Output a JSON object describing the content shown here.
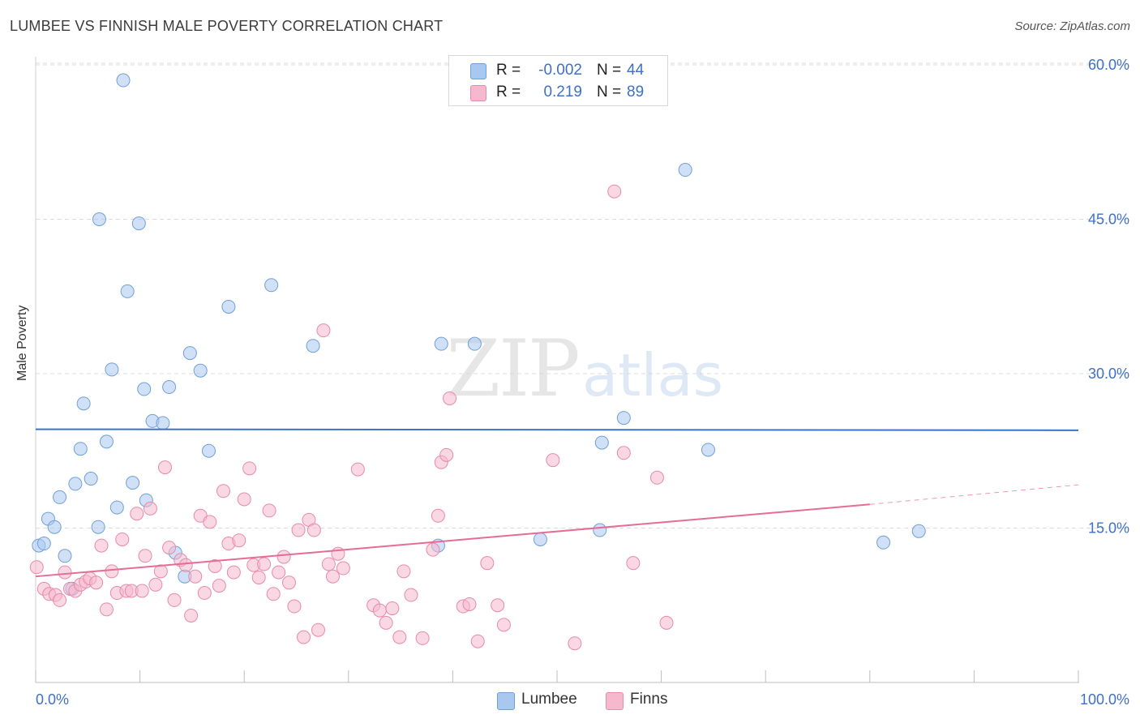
{
  "title": "LUMBEE VS FINNISH MALE POVERTY CORRELATION CHART",
  "source": "Source: ZipAtlas.com",
  "watermark": {
    "zip": "ZIP",
    "atlas": "atlas"
  },
  "stats": [
    {
      "r_label": "R =",
      "r_value": "-0.002",
      "n_label": "N =",
      "n_value": "44",
      "color": "#a9c8f0"
    },
    {
      "r_label": "R =",
      "r_value": "0.219",
      "n_label": "N =",
      "n_value": "89",
      "color": "#f6b8cc"
    }
  ],
  "legend": [
    {
      "label": "Lumbee",
      "color": "#a9c8f0"
    },
    {
      "label": "Finns",
      "color": "#f6b8cc"
    }
  ],
  "colors": {
    "lumbee_fill": "#a9c8f0",
    "lumbee_stroke": "#6f9fd8",
    "lumbee_line": "#3a74c9",
    "finns_fill": "#f6b8cc",
    "finns_stroke": "#e88aa8",
    "finns_line": "#e36d97",
    "tick_label": "#3e70c6",
    "grid": "#dcdcdc"
  },
  "chart_data": {
    "type": "scatter",
    "title": "LUMBEE VS FINNISH MALE POVERTY CORRELATION CHART",
    "xlabel": "",
    "ylabel": "Male Poverty",
    "xlim": [
      0,
      100
    ],
    "ylim": [
      0,
      63
    ],
    "x_tick_labels": [
      {
        "value": 0,
        "label": "0.0%"
      },
      {
        "value": 100,
        "label": "100.0%"
      }
    ],
    "x_minor_ticks": [
      0,
      10,
      20,
      30,
      40,
      50,
      60,
      70,
      80,
      90,
      100
    ],
    "y_ticks": [
      {
        "value": 15,
        "label": "15.0%"
      },
      {
        "value": 30,
        "label": "30.0%"
      },
      {
        "value": 45,
        "label": "45.0%"
      },
      {
        "value": 60,
        "label": "60.0%"
      }
    ],
    "grid": "horizontal dashed",
    "legend_position": "bottom-center",
    "series": [
      {
        "name": "Lumbee",
        "points": [
          [
            0.3,
            13.3
          ],
          [
            0.8,
            13.5
          ],
          [
            1.2,
            15.9
          ],
          [
            1.8,
            15.1
          ],
          [
            2.3,
            18.0
          ],
          [
            2.8,
            12.3
          ],
          [
            3.5,
            9.1
          ],
          [
            3.8,
            19.3
          ],
          [
            4.3,
            22.7
          ],
          [
            4.6,
            27.1
          ],
          [
            5.3,
            19.8
          ],
          [
            6.0,
            15.1
          ],
          [
            6.1,
            45.0
          ],
          [
            6.8,
            23.4
          ],
          [
            7.3,
            30.4
          ],
          [
            7.8,
            17.0
          ],
          [
            8.4,
            58.5
          ],
          [
            8.8,
            38.0
          ],
          [
            9.3,
            19.4
          ],
          [
            9.9,
            44.6
          ],
          [
            10.4,
            28.5
          ],
          [
            10.6,
            17.7
          ],
          [
            11.2,
            25.4
          ],
          [
            12.2,
            25.2
          ],
          [
            12.8,
            28.7
          ],
          [
            13.4,
            12.6
          ],
          [
            14.3,
            10.3
          ],
          [
            14.8,
            32.0
          ],
          [
            15.8,
            30.3
          ],
          [
            16.6,
            22.5
          ],
          [
            18.5,
            36.5
          ],
          [
            22.6,
            38.6
          ],
          [
            26.6,
            32.7
          ],
          [
            38.6,
            13.3
          ],
          [
            38.9,
            32.9
          ],
          [
            42.1,
            32.9
          ],
          [
            48.4,
            13.9
          ],
          [
            54.1,
            14.8
          ],
          [
            54.3,
            23.3
          ],
          [
            56.4,
            25.7
          ],
          [
            62.3,
            49.8
          ],
          [
            64.5,
            22.6
          ],
          [
            81.3,
            13.6
          ],
          [
            84.7,
            14.7
          ]
        ],
        "trend": {
          "x": [
            0,
            100
          ],
          "y": [
            24.6,
            24.5
          ]
        }
      },
      {
        "name": "Finns",
        "points": [
          [
            0.1,
            11.2
          ],
          [
            0.8,
            9.1
          ],
          [
            1.3,
            8.6
          ],
          [
            1.9,
            8.5
          ],
          [
            2.3,
            8.0
          ],
          [
            2.8,
            10.7
          ],
          [
            3.3,
            9.1
          ],
          [
            3.8,
            8.9
          ],
          [
            4.3,
            9.5
          ],
          [
            4.8,
            9.8
          ],
          [
            5.2,
            10.1
          ],
          [
            5.8,
            9.7
          ],
          [
            6.3,
            13.3
          ],
          [
            6.8,
            7.1
          ],
          [
            7.3,
            10.8
          ],
          [
            7.8,
            8.7
          ],
          [
            8.3,
            13.9
          ],
          [
            8.7,
            8.9
          ],
          [
            9.2,
            8.9
          ],
          [
            9.7,
            16.4
          ],
          [
            10.2,
            8.9
          ],
          [
            10.5,
            12.3
          ],
          [
            11.0,
            16.9
          ],
          [
            11.5,
            9.5
          ],
          [
            12.0,
            10.8
          ],
          [
            12.4,
            20.9
          ],
          [
            12.8,
            13.1
          ],
          [
            13.3,
            8.0
          ],
          [
            13.9,
            11.9
          ],
          [
            14.4,
            11.4
          ],
          [
            14.9,
            6.5
          ],
          [
            15.3,
            10.3
          ],
          [
            15.8,
            16.2
          ],
          [
            16.2,
            8.7
          ],
          [
            16.7,
            15.6
          ],
          [
            17.2,
            11.3
          ],
          [
            17.6,
            9.4
          ],
          [
            18.0,
            18.6
          ],
          [
            18.5,
            13.5
          ],
          [
            19.0,
            10.7
          ],
          [
            19.5,
            13.8
          ],
          [
            20.0,
            17.8
          ],
          [
            20.5,
            20.8
          ],
          [
            20.9,
            11.4
          ],
          [
            21.4,
            10.2
          ],
          [
            21.9,
            11.5
          ],
          [
            22.4,
            16.7
          ],
          [
            22.8,
            8.6
          ],
          [
            23.3,
            10.7
          ],
          [
            23.8,
            12.2
          ],
          [
            24.3,
            9.7
          ],
          [
            24.8,
            7.4
          ],
          [
            25.2,
            14.8
          ],
          [
            25.7,
            4.4
          ],
          [
            26.2,
            15.8
          ],
          [
            26.7,
            14.8
          ],
          [
            27.1,
            5.1
          ],
          [
            27.6,
            34.2
          ],
          [
            28.1,
            11.5
          ],
          [
            28.5,
            10.3
          ],
          [
            29.0,
            12.5
          ],
          [
            29.5,
            11.1
          ],
          [
            30.9,
            20.7
          ],
          [
            32.4,
            7.5
          ],
          [
            33.0,
            7.0
          ],
          [
            33.6,
            5.8
          ],
          [
            34.2,
            7.2
          ],
          [
            34.9,
            4.4
          ],
          [
            35.3,
            10.8
          ],
          [
            36.0,
            8.5
          ],
          [
            37.1,
            4.3
          ],
          [
            38.1,
            12.9
          ],
          [
            38.6,
            16.2
          ],
          [
            38.9,
            21.4
          ],
          [
            39.4,
            22.1
          ],
          [
            39.7,
            27.6
          ],
          [
            41.0,
            7.4
          ],
          [
            41.6,
            7.6
          ],
          [
            42.4,
            4.0
          ],
          [
            43.3,
            11.6
          ],
          [
            44.3,
            7.5
          ],
          [
            44.9,
            5.6
          ],
          [
            49.6,
            21.6
          ],
          [
            51.7,
            3.8
          ],
          [
            55.5,
            47.7
          ],
          [
            56.4,
            22.3
          ],
          [
            57.3,
            11.6
          ],
          [
            59.6,
            19.9
          ],
          [
            60.5,
            5.8
          ]
        ],
        "trend": {
          "x": [
            0,
            80
          ],
          "y": [
            10.3,
            17.3
          ]
        },
        "trend_dashed": {
          "x": [
            80,
            100
          ],
          "y": [
            17.3,
            19.2
          ]
        }
      }
    ]
  }
}
